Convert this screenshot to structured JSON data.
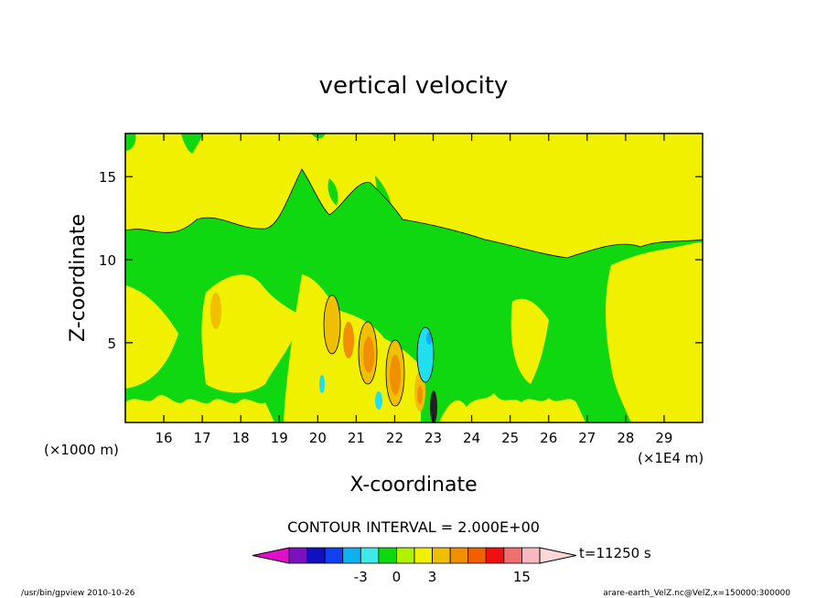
{
  "chart_data": {
    "type": "contour",
    "title": "vertical velocity",
    "xlabel": "X-coordinate",
    "ylabel": "Z-coordinate",
    "x_scale_label": "(×1E4 m)",
    "z_scale_label": "(×1000 m)",
    "xlim": [
      15,
      30
    ],
    "ylim": [
      0.2,
      17.6
    ],
    "x_ticks": [
      "16",
      "17",
      "18",
      "19",
      "20",
      "21",
      "22",
      "23",
      "24",
      "25",
      "26",
      "27",
      "28",
      "29"
    ],
    "y_ticks": [
      "5",
      "10",
      "15"
    ],
    "contour_interval_label": "CONTOUR INTERVAL = 2.000E+00",
    "time_label": "t=11250 s",
    "colorbar": {
      "tick_labels": [
        "-3",
        "0",
        "3",
        "15"
      ],
      "colors": [
        "#e010c8",
        "#7a10c0",
        "#1010c0",
        "#1040f0",
        "#10b0f0",
        "#40e8e8",
        "#10d810",
        "#b0f000",
        "#f0f000",
        "#f0c000",
        "#f09000",
        "#f06000",
        "#f01010",
        "#f07070",
        "#f8b8c0",
        "#fcd8d8"
      ]
    },
    "colors": {
      "green": "#10d810",
      "yellow": "#f0f000",
      "gold": "#f0c000",
      "orange": "#f09000",
      "cyan": "#20e0f0",
      "blue": "#10b0f0"
    },
    "positive_cores": [
      {
        "x": 20.35,
        "z": 5.0,
        "w": 0.22,
        "h": 2.2,
        "level": 2
      },
      {
        "x": 21.4,
        "z": 4.2,
        "w": 0.22,
        "h": 2.0,
        "level": 3
      },
      {
        "x": 22.0,
        "z": 3.0,
        "w": 0.22,
        "h": 2.0,
        "level": 3
      },
      {
        "x": 22.65,
        "z": 1.8,
        "w": 0.15,
        "h": 1.4,
        "level": 2
      },
      {
        "x": 23.1,
        "z": 1.0,
        "w": 0.08,
        "h": 1.2,
        "level": 4
      }
    ],
    "negative_cores": [
      {
        "x": 22.95,
        "z": 4.5,
        "w": 0.12,
        "h": 1.7
      },
      {
        "x": 21.1,
        "z": 1.4,
        "w": 0.06,
        "h": 0.6
      },
      {
        "x": 20.1,
        "z": 2.2,
        "w": 0.05,
        "h": 0.6
      }
    ],
    "footer_left": "/usr/bin/gpview   2010-10-26",
    "footer_right": "arare-earth_VelZ.nc@VelZ,x=150000:300000"
  }
}
